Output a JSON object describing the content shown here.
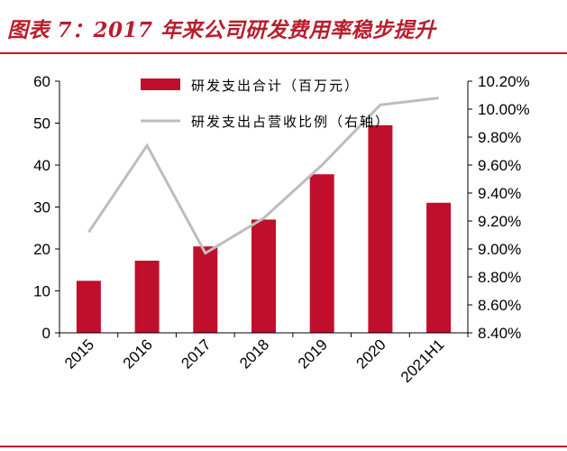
{
  "figure_title": "图表 7：2017 年来公司研发费用率稳步提升",
  "colors": {
    "bar": "#c00f2c",
    "line": "#bdbdbd",
    "accent": "#b81e2d",
    "axis": "#000000"
  },
  "chart_data": {
    "type": "bar",
    "categories": [
      "2015",
      "2016",
      "2017",
      "2018",
      "2019",
      "2020",
      "2021H1"
    ],
    "series": [
      {
        "name": "研发支出合计（百万元）",
        "type": "bar",
        "axis": "left",
        "values": [
          12.4,
          17.2,
          20.6,
          27.0,
          37.8,
          49.5,
          31.0
        ]
      },
      {
        "name": "研发支出占营收比例（右轴）",
        "type": "line",
        "axis": "right",
        "values": [
          9.12,
          9.74,
          8.97,
          9.22,
          9.6,
          10.03,
          10.08
        ]
      }
    ],
    "y_left": {
      "ylim": [
        0,
        60
      ],
      "ticks": [
        "0",
        "10",
        "20",
        "30",
        "40",
        "50",
        "60"
      ]
    },
    "y_right": {
      "ylim": [
        8.4,
        10.2
      ],
      "ticks": [
        "8.40%",
        "8.60%",
        "8.80%",
        "9.00%",
        "9.20%",
        "9.40%",
        "9.60%",
        "9.80%",
        "10.00%",
        "10.20%"
      ]
    },
    "legend_position": "top",
    "grid": false
  }
}
